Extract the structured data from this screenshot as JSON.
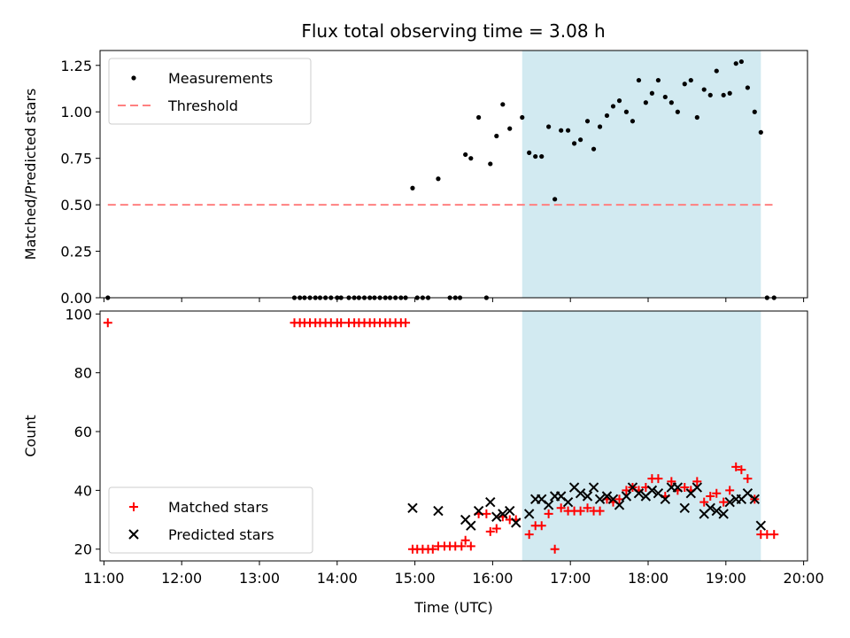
{
  "chart_data": [
    {
      "type": "scatter",
      "title": "Flux total observing time = 3.08 h",
      "xlabel": "",
      "ylabel": "Matched/Predicted stars",
      "xlim": [
        10.95,
        20.05
      ],
      "ylim": [
        0,
        1.33
      ],
      "yticks": [
        0.0,
        0.25,
        0.5,
        0.75,
        1.0,
        1.25
      ],
      "ytick_labels": [
        "0.00",
        "0.25",
        "0.50",
        "0.75",
        "1.00",
        "1.25"
      ],
      "legend_position": "top-left",
      "shaded_interval": [
        16.38,
        19.45
      ],
      "shaded_color": "#add8e6",
      "series": [
        {
          "name": "Measurements",
          "color": "#000000",
          "marker": "dot",
          "points": [
            [
              11.05,
              0
            ],
            [
              13.45,
              0
            ],
            [
              13.52,
              0
            ],
            [
              13.58,
              0
            ],
            [
              13.65,
              0
            ],
            [
              13.72,
              0
            ],
            [
              13.78,
              0
            ],
            [
              13.85,
              0
            ],
            [
              13.92,
              0
            ],
            [
              14.0,
              0
            ],
            [
              14.05,
              0
            ],
            [
              14.15,
              0
            ],
            [
              14.22,
              0
            ],
            [
              14.28,
              0
            ],
            [
              14.35,
              0
            ],
            [
              14.42,
              0
            ],
            [
              14.48,
              0
            ],
            [
              14.55,
              0
            ],
            [
              14.62,
              0
            ],
            [
              14.68,
              0
            ],
            [
              14.75,
              0
            ],
            [
              14.82,
              0
            ],
            [
              14.88,
              0
            ],
            [
              14.97,
              0.59
            ],
            [
              15.03,
              0
            ],
            [
              15.1,
              0
            ],
            [
              15.17,
              0
            ],
            [
              15.3,
              0.64
            ],
            [
              15.45,
              0
            ],
            [
              15.52,
              0
            ],
            [
              15.58,
              0
            ],
            [
              15.65,
              0.77
            ],
            [
              15.72,
              0.75
            ],
            [
              15.82,
              0.97
            ],
            [
              15.92,
              0
            ],
            [
              15.97,
              0.72
            ],
            [
              16.05,
              0.87
            ],
            [
              16.13,
              1.04
            ],
            [
              16.22,
              0.91
            ],
            [
              16.38,
              0.97
            ],
            [
              16.47,
              0.78
            ],
            [
              16.55,
              0.76
            ],
            [
              16.63,
              0.76
            ],
            [
              16.72,
              0.92
            ],
            [
              16.8,
              0.53
            ],
            [
              16.88,
              0.9
            ],
            [
              16.97,
              0.9
            ],
            [
              17.05,
              0.83
            ],
            [
              17.13,
              0.85
            ],
            [
              17.22,
              0.95
            ],
            [
              17.3,
              0.8
            ],
            [
              17.38,
              0.92
            ],
            [
              17.47,
              0.98
            ],
            [
              17.55,
              1.03
            ],
            [
              17.63,
              1.06
            ],
            [
              17.72,
              1.0
            ],
            [
              17.8,
              0.95
            ],
            [
              17.88,
              1.17
            ],
            [
              17.97,
              1.05
            ],
            [
              18.05,
              1.1
            ],
            [
              18.13,
              1.17
            ],
            [
              18.22,
              1.08
            ],
            [
              18.3,
              1.05
            ],
            [
              18.38,
              1.0
            ],
            [
              18.47,
              1.15
            ],
            [
              18.55,
              1.17
            ],
            [
              18.63,
              0.97
            ],
            [
              18.72,
              1.12
            ],
            [
              18.8,
              1.09
            ],
            [
              18.88,
              1.22
            ],
            [
              18.97,
              1.09
            ],
            [
              19.05,
              1.1
            ],
            [
              19.13,
              1.26
            ],
            [
              19.2,
              1.27
            ],
            [
              19.28,
              1.13
            ],
            [
              19.37,
              1.0
            ],
            [
              19.45,
              0.89
            ],
            [
              19.53,
              0
            ],
            [
              19.62,
              0
            ]
          ]
        },
        {
          "name": "Threshold",
          "color": "#ff8080",
          "style": "dashed",
          "points": [
            [
              11.05,
              0.5
            ],
            [
              19.6,
              0.5
            ]
          ]
        }
      ]
    },
    {
      "type": "scatter",
      "title": "",
      "xlabel": "Time (UTC)",
      "ylabel": "Count",
      "xlim": [
        10.95,
        20.05
      ],
      "ylim": [
        16,
        101
      ],
      "yticks": [
        20,
        40,
        60,
        80,
        100
      ],
      "ytick_labels": [
        "20",
        "40",
        "60",
        "80",
        "100"
      ],
      "xticks": [
        11,
        12,
        13,
        14,
        15,
        16,
        17,
        18,
        19,
        20
      ],
      "xtick_labels": [
        "11:00",
        "12:00",
        "13:00",
        "14:00",
        "15:00",
        "16:00",
        "17:00",
        "18:00",
        "19:00",
        "20:00"
      ],
      "legend_position": "bottom-left",
      "shaded_interval": [
        16.38,
        19.45
      ],
      "shaded_color": "#add8e6",
      "series": [
        {
          "name": "Matched stars",
          "color": "#ff0000",
          "marker": "plus",
          "points": [
            [
              11.05,
              97
            ],
            [
              13.45,
              97
            ],
            [
              13.52,
              97
            ],
            [
              13.58,
              97
            ],
            [
              13.65,
              97
            ],
            [
              13.72,
              97
            ],
            [
              13.78,
              97
            ],
            [
              13.85,
              97
            ],
            [
              13.92,
              97
            ],
            [
              14.0,
              97
            ],
            [
              14.05,
              97
            ],
            [
              14.15,
              97
            ],
            [
              14.22,
              97
            ],
            [
              14.28,
              97
            ],
            [
              14.35,
              97
            ],
            [
              14.42,
              97
            ],
            [
              14.48,
              97
            ],
            [
              14.55,
              97
            ],
            [
              14.62,
              97
            ],
            [
              14.68,
              97
            ],
            [
              14.75,
              97
            ],
            [
              14.82,
              97
            ],
            [
              14.88,
              97
            ],
            [
              14.97,
              20
            ],
            [
              15.03,
              20
            ],
            [
              15.1,
              20
            ],
            [
              15.17,
              20
            ],
            [
              15.23,
              20
            ],
            [
              15.3,
              21
            ],
            [
              15.38,
              21
            ],
            [
              15.45,
              21
            ],
            [
              15.52,
              21
            ],
            [
              15.6,
              21
            ],
            [
              15.65,
              23
            ],
            [
              15.72,
              21
            ],
            [
              15.82,
              32
            ],
            [
              15.92,
              32
            ],
            [
              15.97,
              26
            ],
            [
              16.05,
              27
            ],
            [
              16.13,
              31
            ],
            [
              16.22,
              30
            ],
            [
              16.3,
              30
            ],
            [
              16.47,
              25
            ],
            [
              16.55,
              28
            ],
            [
              16.63,
              28
            ],
            [
              16.72,
              32
            ],
            [
              16.8,
              20
            ],
            [
              16.88,
              34
            ],
            [
              16.97,
              33
            ],
            [
              17.05,
              33
            ],
            [
              17.13,
              33
            ],
            [
              17.22,
              34
            ],
            [
              17.3,
              33
            ],
            [
              17.38,
              33
            ],
            [
              17.47,
              37
            ],
            [
              17.55,
              36
            ],
            [
              17.63,
              37
            ],
            [
              17.72,
              40
            ],
            [
              17.8,
              41
            ],
            [
              17.88,
              40
            ],
            [
              17.97,
              41
            ],
            [
              18.05,
              44
            ],
            [
              18.13,
              44
            ],
            [
              18.22,
              38
            ],
            [
              18.3,
              43
            ],
            [
              18.38,
              40
            ],
            [
              18.47,
              41
            ],
            [
              18.55,
              40
            ],
            [
              18.63,
              43
            ],
            [
              18.72,
              36
            ],
            [
              18.8,
              38
            ],
            [
              18.88,
              39
            ],
            [
              18.97,
              36
            ],
            [
              19.05,
              40
            ],
            [
              19.13,
              48
            ],
            [
              19.2,
              47
            ],
            [
              19.28,
              44
            ],
            [
              19.37,
              37
            ],
            [
              19.45,
              25
            ],
            [
              19.53,
              25
            ],
            [
              19.62,
              25
            ]
          ]
        },
        {
          "name": "Predicted stars",
          "color": "#000000",
          "marker": "x",
          "points": [
            [
              14.97,
              34
            ],
            [
              15.3,
              33
            ],
            [
              15.65,
              30
            ],
            [
              15.72,
              28
            ],
            [
              15.82,
              33
            ],
            [
              15.97,
              36
            ],
            [
              16.05,
              31
            ],
            [
              16.13,
              32
            ],
            [
              16.22,
              33
            ],
            [
              16.3,
              29
            ],
            [
              16.47,
              32
            ],
            [
              16.55,
              37
            ],
            [
              16.63,
              37
            ],
            [
              16.72,
              35
            ],
            [
              16.8,
              38
            ],
            [
              16.88,
              38
            ],
            [
              16.97,
              36
            ],
            [
              17.05,
              41
            ],
            [
              17.13,
              39
            ],
            [
              17.22,
              38
            ],
            [
              17.3,
              41
            ],
            [
              17.38,
              37
            ],
            [
              17.47,
              38
            ],
            [
              17.55,
              37
            ],
            [
              17.63,
              35
            ],
            [
              17.72,
              38
            ],
            [
              17.8,
              41
            ],
            [
              17.88,
              39
            ],
            [
              17.97,
              38
            ],
            [
              18.05,
              40
            ],
            [
              18.13,
              39
            ],
            [
              18.22,
              37
            ],
            [
              18.3,
              41
            ],
            [
              18.38,
              41
            ],
            [
              18.47,
              34
            ],
            [
              18.55,
              39
            ],
            [
              18.63,
              41
            ],
            [
              18.72,
              32
            ],
            [
              18.8,
              34
            ],
            [
              18.88,
              33
            ],
            [
              18.97,
              32
            ],
            [
              19.05,
              36
            ],
            [
              19.13,
              37
            ],
            [
              19.2,
              37
            ],
            [
              19.28,
              39
            ],
            [
              19.37,
              37
            ],
            [
              19.45,
              28
            ]
          ]
        }
      ]
    }
  ]
}
